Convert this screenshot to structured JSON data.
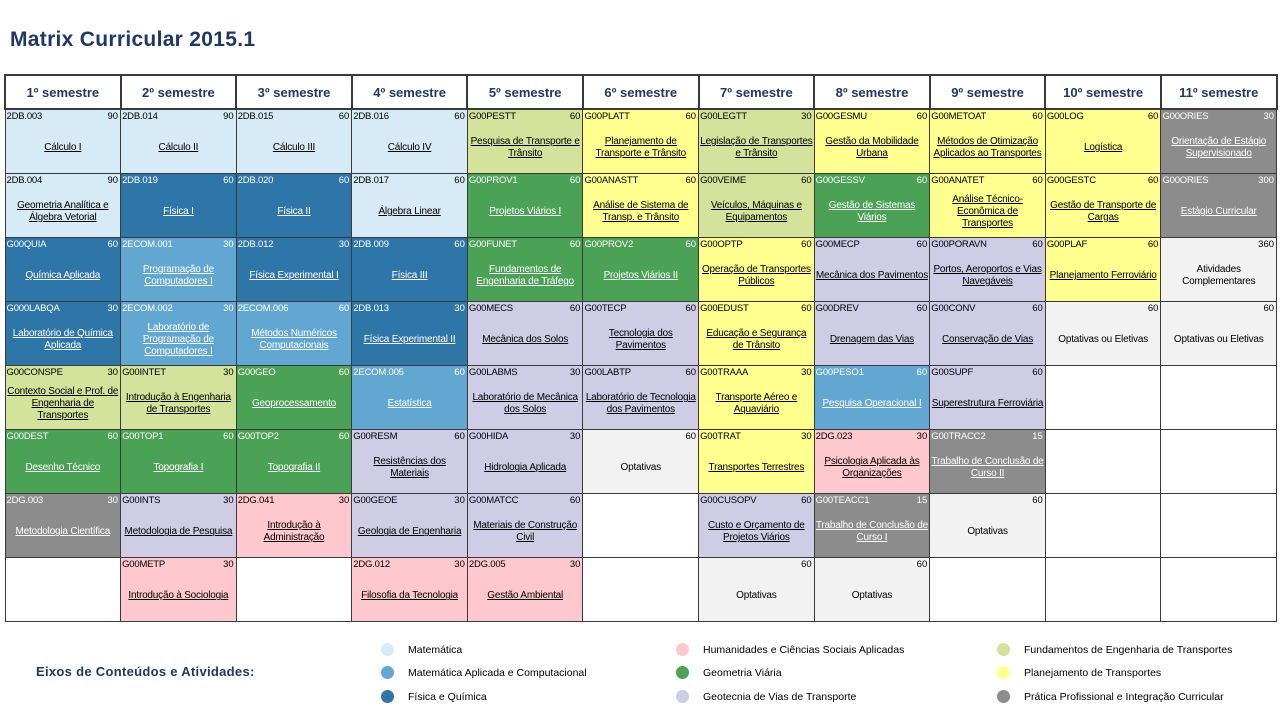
{
  "title": "Matrix Curricular 2015.1",
  "semesters": [
    "1º semestre",
    "2º semestre",
    "3º semestre",
    "4º semestre",
    "5º semestre",
    "6º semestre",
    "7º semestre",
    "8º semestre",
    "9º semestre",
    "10º semestre",
    "11º semestre"
  ],
  "colors": {
    "0": "#d6ebf5",
    "1": "#ffc7ce",
    "2": "#62a6d2",
    "3": "#2e75a8",
    "4": "#4ba155",
    "5": "#d4e39b",
    "6": "#cfcce6",
    "7": "#ffff8f",
    "8": "#8c8c8c",
    "9": "#f2f2f2",
    "10": "#ffffff"
  },
  "grid": [
    [
      {
        "code": "2DB.003",
        "hours": "90",
        "name": "Cálculo I",
        "color": 0
      },
      {
        "code": "2DB.004",
        "hours": "90",
        "name": "Geometria Analítica e Álgebra Vetorial",
        "color": 0
      },
      {
        "code": "G00QUIA",
        "hours": "60",
        "name": "Química Aplicada",
        "color": 3
      },
      {
        "code": "G000LABQA",
        "hours": "30",
        "name": "Laboratório de Química Aplicada",
        "color": 3
      },
      {
        "code": "G00CONSPE",
        "hours": "30",
        "name": "Contexto Social e Prof. de Engenharia de Transportes",
        "color": 5
      },
      {
        "code": "G00DEST",
        "hours": "60",
        "name": "Desenho Técnico",
        "color": 4
      },
      {
        "code": "2DG.003",
        "hours": "30",
        "name": "Metodologia Científica",
        "color": 8
      },
      {
        "color": 10
      }
    ],
    [
      {
        "code": "2DB.014",
        "hours": "90",
        "name": "Cálculo II",
        "color": 0
      },
      {
        "code": "2DB.019",
        "hours": "60",
        "name": "Física I",
        "color": 3
      },
      {
        "code": "2ECOM.001",
        "hours": "30",
        "name": "Programação de Computadores I",
        "color": 2
      },
      {
        "code": "2ECOM.002",
        "hours": "30",
        "name": "Laboratório de Programação de Computadores I",
        "color": 2
      },
      {
        "code": "G00INTET",
        "hours": "30",
        "name": "Introdução à Engenharia de Transportes",
        "color": 5
      },
      {
        "code": "G00TOP1",
        "hours": "60",
        "name": "Topografia I",
        "color": 4
      },
      {
        "code": "G00INTS",
        "hours": "30",
        "name": "Metodologia de Pesquisa",
        "color": 6
      },
      {
        "code": "G00METP",
        "hours": "30",
        "name": "Introdução à Sociologia",
        "color": 1
      }
    ],
    [
      {
        "code": "2DB.015",
        "hours": "60",
        "name": "Cálculo III",
        "color": 0
      },
      {
        "code": "2DB.020",
        "hours": "60",
        "name": "Física II",
        "color": 3
      },
      {
        "code": "2DB.012",
        "hours": "30",
        "name": "Física Experimental I",
        "color": 3
      },
      {
        "code": "2ECOM.006",
        "hours": "60",
        "name": "Métodos Numéricos Computacionais",
        "color": 2
      },
      {
        "code": "G00GEO",
        "hours": "60",
        "name": "Geoprocessamento",
        "color": 4
      },
      {
        "code": "G00TOP2",
        "hours": "60",
        "name": "Topografia II",
        "color": 4
      },
      {
        "code": "2DG.041",
        "hours": "30",
        "name": "Introdução à Administração",
        "color": 1
      },
      {
        "color": 10
      }
    ],
    [
      {
        "code": "2DB.016",
        "hours": "60",
        "name": "Cálculo IV",
        "color": 0
      },
      {
        "code": "2DB.017",
        "hours": "60",
        "name": "Álgebra Linear",
        "color": 0
      },
      {
        "code": "2DB.009",
        "hours": "60",
        "name": "Física III",
        "color": 3
      },
      {
        "code": "2DB.013",
        "hours": "30",
        "name": "Física Experimental II",
        "color": 3
      },
      {
        "code": "2ECOM.005",
        "hours": "60",
        "name": "Estatística",
        "color": 2
      },
      {
        "code": "G00RESM",
        "hours": "60",
        "name": "Resistências dos Materiais",
        "color": 6
      },
      {
        "code": "G00GEOE",
        "hours": "30",
        "name": "Geologia de Engenharia",
        "color": 6
      },
      {
        "code": "2DG.012",
        "hours": "30",
        "name": "Filosofia da Tecnologia",
        "color": 1
      }
    ],
    [
      {
        "code": "G00PESTT",
        "hours": "60",
        "name": "Pesquisa de Transporte e Trânsito",
        "color": 5
      },
      {
        "code": "G00PROV1",
        "hours": "60",
        "name": "Projetos Viários I",
        "color": 4
      },
      {
        "code": "G00FUNET",
        "hours": "60",
        "name": "Fundamentos de Engenharia de Tráfego",
        "color": 4
      },
      {
        "code": "G00MECS",
        "hours": "60",
        "name": "Mecânica dos Solos",
        "color": 6
      },
      {
        "code": "G00LABMS",
        "hours": "30",
        "name": "Laboratório de Mecânica dos Solos",
        "color": 6
      },
      {
        "code": "G00HIDA",
        "hours": "30",
        "name": "Hidrologia Aplicada",
        "color": 6
      },
      {
        "code": "G00MATCC",
        "hours": "60",
        "name": "Materiais de Construção Civil",
        "color": 6
      },
      {
        "code": "2DG.005",
        "hours": "30",
        "name": "Gestão Ambiental",
        "color": 1
      }
    ],
    [
      {
        "code": "G00PLATT",
        "hours": "60",
        "name": "Planejamento de Transporte e Trânsito",
        "color": 7
      },
      {
        "code": "G00ANASTT",
        "hours": "60",
        "name": "Análise de Sistema de Transp. e Trânsito",
        "color": 7
      },
      {
        "code": "G00PROV2",
        "hours": "60",
        "name": "Projetos Viários II",
        "color": 4
      },
      {
        "code": "G00TECP",
        "hours": "60",
        "name": "Tecnologia dos Pavimentos",
        "color": 6
      },
      {
        "code": "G00LABTP",
        "hours": "60",
        "name": "Laboratório de Tecnologia dos Pavimentos",
        "color": 6
      },
      {
        "code": "",
        "hours": "60",
        "name": "Optativas",
        "color": 9,
        "plain": true
      },
      {
        "color": 10
      },
      {
        "color": 10
      }
    ],
    [
      {
        "code": "G00LEGTT",
        "hours": "30",
        "name": "Legislação de Transportes e Trânsito",
        "color": 5
      },
      {
        "code": "G00VEIME",
        "hours": "60",
        "name": "Veículos, Máquinas e Equipamentos",
        "color": 5
      },
      {
        "code": "G00OPTP",
        "hours": "60",
        "name": "Operação de Transportes Públicos",
        "color": 7
      },
      {
        "code": "G00EDUST",
        "hours": "60",
        "name": "Educação e Segurança de Trânsito",
        "color": 7
      },
      {
        "code": "G00TRAAA",
        "hours": "30",
        "name": "Transporte Aéreo e Aquaviário",
        "color": 7
      },
      {
        "code": "G00TRAT",
        "hours": "30",
        "name": "Transportes Terrestres",
        "color": 7
      },
      {
        "code": "G00CUSOPV",
        "hours": "60",
        "name": "Custo e Orçamento de Projetos Viários",
        "color": 6
      },
      {
        "code": "",
        "hours": "60",
        "name": "Optativas",
        "color": 9,
        "plain": true
      }
    ],
    [
      {
        "code": "G00GESMU",
        "hours": "60",
        "name": "Gestão da Mobilidade Urbana",
        "color": 7
      },
      {
        "code": "G00GESSV",
        "hours": "60",
        "name": "Gestão de Sistemas Viários",
        "color": 4
      },
      {
        "code": "G00MECP",
        "hours": "60",
        "name": "Mecânica dos Pavimentos",
        "color": 6
      },
      {
        "code": "G00DREV",
        "hours": "60",
        "name": "Drenagem das Vias",
        "color": 6
      },
      {
        "code": "G00PESO1",
        "hours": "60",
        "name": "Pesquisa Operacional I",
        "color": 2
      },
      {
        "code": "2DG.023",
        "hours": "30",
        "name": "Psicologia Aplicada às Organizações",
        "color": 1
      },
      {
        "code": "G00TEACC1",
        "hours": "15",
        "name": "Trabalho de Conclusão de Curso I",
        "color": 8
      },
      {
        "code": "",
        "hours": "60",
        "name": "Optativas",
        "color": 9,
        "plain": true
      }
    ],
    [
      {
        "code": "G00METOAT",
        "hours": "60",
        "name": "Métodos de Otimização Aplicados ao Transportes",
        "color": 7
      },
      {
        "code": "G00ANATET",
        "hours": "60",
        "name": "Análise Técnico-Econômica de Transportes",
        "color": 7
      },
      {
        "code": "G00PORAVN",
        "hours": "60",
        "name": "Portos, Aeroportos e Vias Navegáveis",
        "color": 6
      },
      {
        "code": "G00CONV",
        "hours": "60",
        "name": "Conservação de Vias",
        "color": 6
      },
      {
        "code": "G00SUPF",
        "hours": "60",
        "name": "Superestrutura Ferroviária",
        "color": 6
      },
      {
        "code": "G00TRACC2",
        "hours": "15",
        "name": "Trabalho de Conclusão de Curso II",
        "color": 8
      },
      {
        "code": "",
        "hours": "60",
        "name": "Optativas",
        "color": 9,
        "plain": true
      },
      {
        "color": 10
      }
    ],
    [
      {
        "code": "G00LOG",
        "hours": "60",
        "name": "Logística",
        "color": 7
      },
      {
        "code": "G00GESTC",
        "hours": "60",
        "name": "Gestão de Transporte de Cargas",
        "color": 7
      },
      {
        "code": "G00PLAF",
        "hours": "60",
        "name": "Planejamento Ferroviário",
        "color": 7
      },
      {
        "code": "",
        "hours": "60",
        "name": "Optativas ou Eletivas",
        "color": 9,
        "plain": true
      },
      {
        "color": 10
      },
      {
        "color": 10
      },
      {
        "color": 10
      },
      {
        "color": 10
      }
    ],
    [
      {
        "code": "G00ORIES",
        "hours": "30",
        "name": "Orientação de Estágio Supervisionado",
        "color": 8
      },
      {
        "code": "G00ORIES",
        "hours": "300",
        "name": "Estágio Curricular",
        "color": 8
      },
      {
        "code": "",
        "hours": "360",
        "name": "Atividades Complementares",
        "color": 9,
        "plain": true
      },
      {
        "code": "",
        "hours": "60",
        "name": "Optativas ou Eletivas",
        "color": 9,
        "plain": true
      },
      {
        "color": 10
      },
      {
        "color": 10
      },
      {
        "color": 10
      },
      {
        "color": 10
      }
    ]
  ],
  "legend": {
    "label": "Eixos de Conteúdos e Atividades:",
    "items": [
      {
        "name": "Matemática",
        "color": "#d6ebf5"
      },
      {
        "name": "Matemática Aplicada e Computacional",
        "color": "#62a6d2"
      },
      {
        "name": "Física e Química",
        "color": "#2e75a8"
      },
      {
        "name": "Humanidades e Ciências Sociais Aplicadas",
        "color": "#ffc7ce"
      },
      {
        "name": "Geometria Viária",
        "color": "#4ba155"
      },
      {
        "name": "Geotecnia de Vias de Transporte",
        "color": "#cfcce6"
      },
      {
        "name": "Fundamentos de Engenharia de Transportes",
        "color": "#d4e39b"
      },
      {
        "name": "Planejamento de Transportes",
        "color": "#ffff8f"
      },
      {
        "name": "Prática Profissional e Integração Curricular",
        "color": "#8c8c8c"
      }
    ]
  }
}
